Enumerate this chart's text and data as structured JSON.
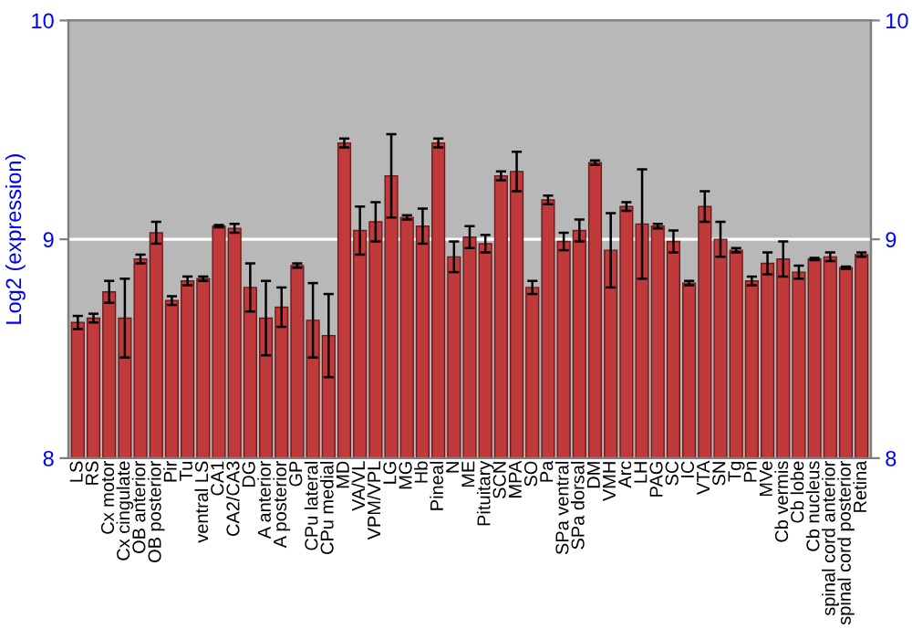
{
  "chart_data": {
    "type": "bar",
    "ylabel": "Log2 (expression)",
    "categories": [
      "LS",
      "RS",
      "Cx motor",
      "Cx cingulate",
      "OB anterior",
      "OB posterior",
      "Pir",
      "Tu",
      "ventral LS",
      "CA1",
      "CA2/CA3",
      "DG",
      "A anterior",
      "A posterior",
      "GP",
      "CPu lateral",
      "CPu medial",
      "MD",
      "VA/VL",
      "VPM/VPL",
      "LG",
      "MG",
      "Hb",
      "Pineal",
      "N",
      "ME",
      "Pituitary",
      "SCN",
      "MPA",
      "SO",
      "Pa",
      "SPa ventral",
      "SPa dorsal",
      "DM",
      "VMH",
      "Arc",
      "LH",
      "PAG",
      "SC",
      "IC",
      "VTA",
      "SN",
      "Tg",
      "Pn",
      "MVe",
      "Cb vermis",
      "Cb lobe",
      "Cb nucleus",
      "spinal cord anterior",
      "spinal cord posterior",
      "Retina"
    ],
    "values": [
      8.62,
      8.64,
      8.76,
      8.64,
      8.91,
      9.03,
      8.72,
      8.81,
      8.82,
      9.06,
      9.05,
      8.78,
      8.64,
      8.69,
      8.88,
      8.63,
      8.56,
      9.44,
      9.04,
      9.08,
      9.29,
      9.1,
      9.06,
      9.44,
      8.92,
      9.01,
      8.98,
      9.29,
      9.31,
      8.78,
      9.18,
      8.99,
      9.04,
      9.35,
      8.95,
      9.15,
      9.07,
      9.06,
      8.99,
      8.8,
      9.15,
      9.0,
      8.95,
      8.81,
      8.89,
      8.91,
      8.85,
      8.91,
      8.92,
      8.87,
      8.93
    ],
    "errors": [
      0.03,
      0.02,
      0.05,
      0.18,
      0.02,
      0.05,
      0.02,
      0.02,
      0.01,
      0.005,
      0.02,
      0.11,
      0.17,
      0.09,
      0.01,
      0.17,
      0.19,
      0.02,
      0.11,
      0.09,
      0.19,
      0.01,
      0.08,
      0.02,
      0.07,
      0.05,
      0.04,
      0.02,
      0.09,
      0.03,
      0.02,
      0.04,
      0.05,
      0.01,
      0.17,
      0.02,
      0.25,
      0.01,
      0.05,
      0.01,
      0.07,
      0.08,
      0.01,
      0.02,
      0.05,
      0.08,
      0.03,
      0.005,
      0.02,
      0.005,
      0.01
    ],
    "color": "#c0393b",
    "ylim": [
      8,
      10
    ],
    "yticks": [
      8,
      9,
      10
    ],
    "y2lim": [
      8,
      10
    ],
    "y2ticks": [
      8,
      9,
      10
    ],
    "grid": "y"
  }
}
